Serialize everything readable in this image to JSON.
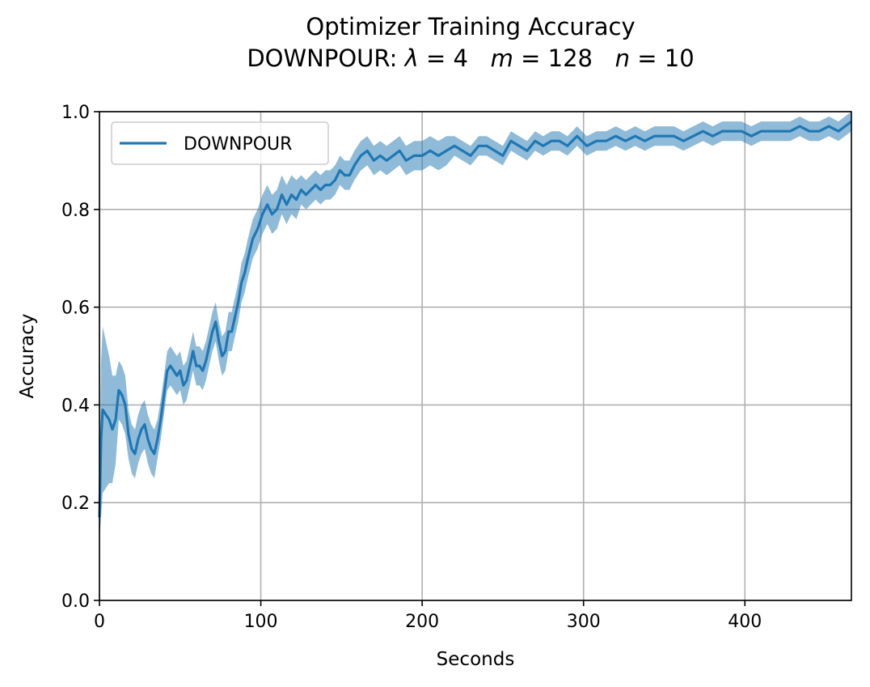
{
  "chart_data": {
    "type": "line",
    "title": "Optimizer Training Accuracy",
    "subtitle": {
      "prefix": "DOWNPOUR: ",
      "lambda_symbol": "λ",
      "lambda_value": " = 4",
      "m_symbol": "m",
      "m_value": " = 128",
      "n_symbol": "n",
      "n_value": " = 10"
    },
    "xlabel": "Seconds",
    "ylabel": "Accuracy",
    "xlim": [
      0,
      466
    ],
    "ylim": [
      0.0,
      1.0
    ],
    "xticks": [
      0,
      100,
      200,
      300,
      400
    ],
    "xtick_labels": [
      "0",
      "100",
      "200",
      "300",
      "400"
    ],
    "yticks": [
      0.0,
      0.2,
      0.4,
      0.6,
      0.8,
      1.0
    ],
    "ytick_labels": [
      "0.0",
      "0.2",
      "0.4",
      "0.6",
      "0.8",
      "1.0"
    ],
    "grid": true,
    "legend_position": "upper-left",
    "series": [
      {
        "name": "DOWNPOUR",
        "color": "#1f77b4",
        "band_color": "#1f77b4",
        "x": [
          0,
          1,
          2,
          4,
          6,
          8,
          10,
          12,
          14,
          16,
          18,
          20,
          22,
          24,
          26,
          28,
          30,
          32,
          34,
          36,
          38,
          40,
          42,
          44,
          46,
          48,
          50,
          52,
          54,
          56,
          58,
          60,
          62,
          64,
          66,
          68,
          70,
          72,
          74,
          76,
          78,
          80,
          82,
          84,
          86,
          88,
          90,
          92,
          95,
          98,
          101,
          104,
          107,
          110,
          113,
          116,
          119,
          122,
          125,
          128,
          131,
          134,
          137,
          140,
          143,
          146,
          149,
          152,
          155,
          158,
          162,
          166,
          170,
          174,
          178,
          182,
          186,
          190,
          195,
          200,
          205,
          210,
          215,
          220,
          225,
          230,
          235,
          240,
          245,
          250,
          255,
          260,
          265,
          270,
          275,
          280,
          285,
          290,
          296,
          302,
          308,
          314,
          320,
          326,
          332,
          338,
          344,
          350,
          356,
          362,
          368,
          374,
          380,
          386,
          392,
          398,
          404,
          410,
          416,
          422,
          428,
          434,
          440,
          446,
          452,
          458,
          466
        ],
        "y": [
          0.17,
          0.33,
          0.39,
          0.38,
          0.37,
          0.35,
          0.37,
          0.43,
          0.42,
          0.4,
          0.34,
          0.31,
          0.3,
          0.33,
          0.35,
          0.36,
          0.33,
          0.31,
          0.3,
          0.33,
          0.37,
          0.42,
          0.47,
          0.48,
          0.47,
          0.46,
          0.47,
          0.44,
          0.45,
          0.48,
          0.51,
          0.48,
          0.48,
          0.47,
          0.49,
          0.52,
          0.55,
          0.57,
          0.53,
          0.5,
          0.51,
          0.55,
          0.55,
          0.58,
          0.61,
          0.65,
          0.67,
          0.7,
          0.74,
          0.76,
          0.79,
          0.81,
          0.79,
          0.8,
          0.83,
          0.81,
          0.83,
          0.82,
          0.84,
          0.83,
          0.84,
          0.85,
          0.84,
          0.85,
          0.85,
          0.86,
          0.88,
          0.87,
          0.87,
          0.89,
          0.91,
          0.92,
          0.9,
          0.91,
          0.9,
          0.91,
          0.92,
          0.9,
          0.91,
          0.91,
          0.92,
          0.91,
          0.92,
          0.93,
          0.92,
          0.91,
          0.93,
          0.93,
          0.92,
          0.91,
          0.94,
          0.93,
          0.92,
          0.94,
          0.93,
          0.94,
          0.94,
          0.93,
          0.95,
          0.93,
          0.94,
          0.94,
          0.95,
          0.94,
          0.95,
          0.94,
          0.95,
          0.95,
          0.95,
          0.94,
          0.95,
          0.96,
          0.95,
          0.96,
          0.96,
          0.96,
          0.95,
          0.96,
          0.96,
          0.96,
          0.96,
          0.97,
          0.96,
          0.96,
          0.97,
          0.96,
          0.98
        ],
        "band_halfwidth": [
          0.05,
          0.16,
          0.17,
          0.15,
          0.13,
          0.11,
          0.09,
          0.06,
          0.06,
          0.06,
          0.05,
          0.05,
          0.05,
          0.05,
          0.05,
          0.05,
          0.05,
          0.05,
          0.05,
          0.04,
          0.04,
          0.04,
          0.04,
          0.04,
          0.04,
          0.04,
          0.04,
          0.04,
          0.04,
          0.04,
          0.04,
          0.04,
          0.04,
          0.04,
          0.04,
          0.04,
          0.04,
          0.04,
          0.04,
          0.04,
          0.04,
          0.04,
          0.04,
          0.04,
          0.04,
          0.04,
          0.04,
          0.04,
          0.04,
          0.04,
          0.04,
          0.04,
          0.04,
          0.04,
          0.04,
          0.04,
          0.04,
          0.04,
          0.03,
          0.03,
          0.03,
          0.03,
          0.03,
          0.03,
          0.03,
          0.03,
          0.03,
          0.03,
          0.03,
          0.03,
          0.03,
          0.03,
          0.03,
          0.03,
          0.03,
          0.03,
          0.03,
          0.03,
          0.03,
          0.03,
          0.03,
          0.03,
          0.03,
          0.02,
          0.02,
          0.02,
          0.02,
          0.02,
          0.02,
          0.02,
          0.02,
          0.02,
          0.02,
          0.02,
          0.02,
          0.02,
          0.02,
          0.02,
          0.02,
          0.02,
          0.02,
          0.02,
          0.02,
          0.02,
          0.02,
          0.02,
          0.02,
          0.02,
          0.02,
          0.02,
          0.02,
          0.02,
          0.02,
          0.02,
          0.02,
          0.02,
          0.02,
          0.02,
          0.02,
          0.02,
          0.02,
          0.02,
          0.02,
          0.02,
          0.02,
          0.02,
          0.02
        ]
      }
    ]
  }
}
